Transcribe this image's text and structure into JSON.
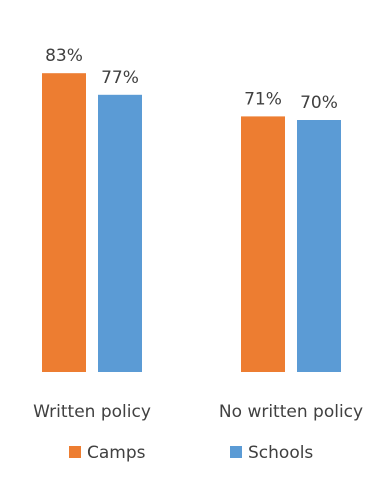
{
  "chart_data": {
    "type": "bar",
    "categories": [
      "Written policy",
      "No written policy"
    ],
    "series": [
      {
        "name": "Camps",
        "values": [
          83,
          71
        ],
        "color": "#ED7D31",
        "labels": [
          "83%",
          "71%"
        ]
      },
      {
        "name": "Schools",
        "values": [
          77,
          70
        ],
        "color": "#5B9BD5",
        "labels": [
          "77%",
          "70%"
        ]
      }
    ],
    "ylim": [
      0,
      100
    ],
    "grid": false,
    "legend_position": "bottom",
    "title": "",
    "xlabel": "",
    "ylabel": ""
  }
}
